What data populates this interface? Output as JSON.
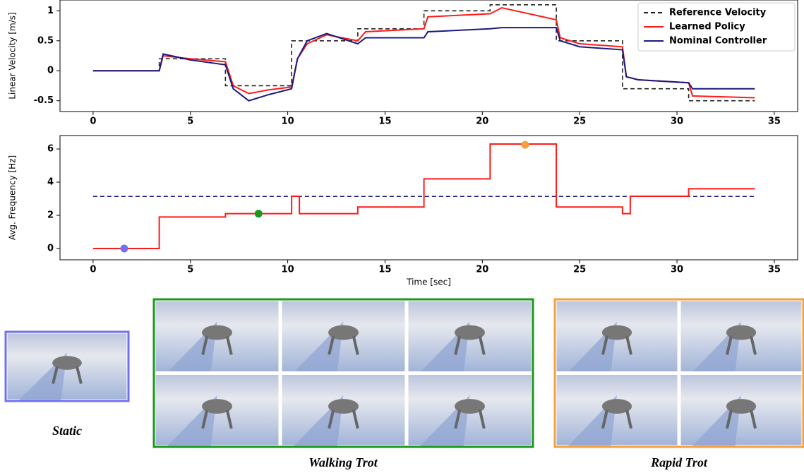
{
  "chart_data": [
    {
      "type": "line",
      "ylabel": "Linear Velocity [m/s]",
      "xlim": [
        -1.7,
        36.2
      ],
      "ylim": [
        -0.68,
        1.18
      ],
      "xticks": [
        0,
        5,
        10,
        15,
        20,
        25,
        30,
        35
      ],
      "yticks": [
        -0.5,
        0.0,
        0.5,
        1.0
      ],
      "legend": "upper right",
      "series": [
        {
          "name": "Reference Velocity",
          "color": "#222222",
          "dashed": true,
          "x": [
            0,
            3.4,
            3.4,
            6.8,
            6.8,
            10.2,
            10.2,
            13.6,
            13.6,
            17,
            17,
            20.4,
            20.4,
            23.8,
            23.8,
            27.2,
            27.2,
            30.6,
            30.6,
            34
          ],
          "values": [
            0,
            0,
            0.2,
            0.2,
            -0.25,
            -0.25,
            0.5,
            0.5,
            0.7,
            0.7,
            1.0,
            1.0,
            1.1,
            1.1,
            0.5,
            0.5,
            -0.3,
            -0.3,
            -0.5,
            -0.5
          ]
        },
        {
          "name": "Learned Policy",
          "color": "#ff1a1a",
          "dashed": false,
          "x": [
            0,
            3.4,
            3.6,
            5,
            6.8,
            7.2,
            8,
            9,
            10.2,
            10.5,
            11,
            12,
            13.6,
            14,
            17,
            17.2,
            20.4,
            21,
            23.8,
            24,
            25,
            27.2,
            27.4,
            28,
            30.6,
            30.8,
            34
          ],
          "values": [
            0,
            0,
            0.25,
            0.2,
            0.15,
            -0.25,
            -0.38,
            -0.32,
            -0.27,
            0.2,
            0.45,
            0.6,
            0.5,
            0.65,
            0.7,
            0.9,
            0.95,
            1.05,
            0.85,
            0.55,
            0.45,
            0.4,
            -0.1,
            -0.15,
            -0.2,
            -0.42,
            -0.45
          ]
        },
        {
          "name": "Nominal Controller",
          "color": "#1a1a80",
          "dashed": false,
          "x": [
            0,
            3.4,
            3.6,
            5,
            6.8,
            7.2,
            8,
            9,
            10.2,
            10.5,
            11,
            12,
            13.6,
            14,
            17,
            17.2,
            20.4,
            21,
            23.8,
            24,
            25,
            27.2,
            27.4,
            28,
            30.6,
            30.8,
            34
          ],
          "values": [
            0,
            0,
            0.28,
            0.18,
            0.1,
            -0.3,
            -0.5,
            -0.4,
            -0.3,
            0.2,
            0.5,
            0.62,
            0.45,
            0.55,
            0.55,
            0.65,
            0.7,
            0.72,
            0.72,
            0.5,
            0.4,
            0.35,
            -0.1,
            -0.15,
            -0.2,
            -0.3,
            -0.3
          ]
        }
      ]
    },
    {
      "type": "line",
      "ylabel": "Avg. Frequency [Hz]",
      "xlabel": "Time [sec]",
      "xlim": [
        -1.7,
        36.2
      ],
      "ylim": [
        -0.68,
        6.81
      ],
      "xticks": [
        0,
        5,
        10,
        15,
        20,
        25,
        30,
        35
      ],
      "yticks": [
        0,
        2,
        4,
        6
      ],
      "series": [
        {
          "color": "#1a1a80",
          "dashed": true,
          "x": [
            0,
            34
          ],
          "values": [
            3.14,
            3.14
          ]
        },
        {
          "color": "#ff1a1a",
          "dashed": false,
          "x": [
            0,
            3.4,
            3.4,
            6.8,
            6.8,
            10.2,
            10.2,
            10.6,
            10.6,
            13.6,
            13.6,
            17,
            17,
            20.4,
            20.4,
            23.8,
            23.8,
            27.2,
            27.2,
            27.6,
            27.6,
            30.6,
            30.6,
            34
          ],
          "values": [
            0,
            0,
            1.9,
            1.9,
            2.1,
            2.1,
            3.15,
            3.15,
            2.1,
            2.1,
            2.5,
            2.5,
            4.2,
            4.2,
            6.3,
            6.3,
            2.5,
            2.5,
            2.1,
            2.1,
            3.15,
            3.15,
            3.6,
            3.6
          ]
        }
      ],
      "points": {
        "x": [
          1.6,
          8.5,
          22.2
        ],
        "values": [
          0,
          2.1,
          6.25
        ],
        "colors": [
          "#7070f0",
          "#1a9a1a",
          "#f5a040"
        ]
      }
    }
  ],
  "panels": [
    {
      "caption": "Static"
    },
    {
      "caption": "Walking Trot"
    },
    {
      "caption": "Rapid Trot"
    }
  ]
}
